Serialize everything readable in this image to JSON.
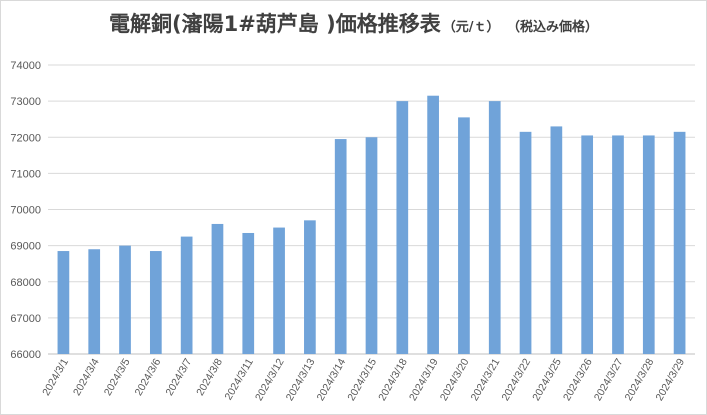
{
  "chart_data": {
    "type": "bar",
    "title": "電解銅(瀋陽1#葫芦島 )価格推移表",
    "unit": "（元/ｔ）",
    "note": "（税込み価格）",
    "xlabel": "",
    "ylabel": "",
    "ylim": [
      66000,
      74000
    ],
    "yticks": [
      66000,
      67000,
      68000,
      69000,
      70000,
      71000,
      72000,
      73000,
      74000
    ],
    "grid": true,
    "legend": "none",
    "bar_color": "#70a3d9",
    "categories": [
      "2024/3/1",
      "2024/3/4",
      "2024/3/5",
      "2024/3/6",
      "2024/3/7",
      "2024/3/8",
      "2024/3/11",
      "2024/3/12",
      "2024/3/13",
      "2024/3/14",
      "2024/3/15",
      "2024/3/18",
      "2024/3/19",
      "2024/3/20",
      "2024/3/21",
      "2024/3/22",
      "2024/3/25",
      "2024/3/26",
      "2024/3/27",
      "2024/3/28",
      "2024/3/29"
    ],
    "values": [
      68850,
      68900,
      69000,
      68850,
      69250,
      69600,
      69350,
      69500,
      69700,
      71950,
      72000,
      73000,
      73150,
      72550,
      73000,
      72150,
      72300,
      72050,
      72050,
      72050,
      72150
    ]
  }
}
